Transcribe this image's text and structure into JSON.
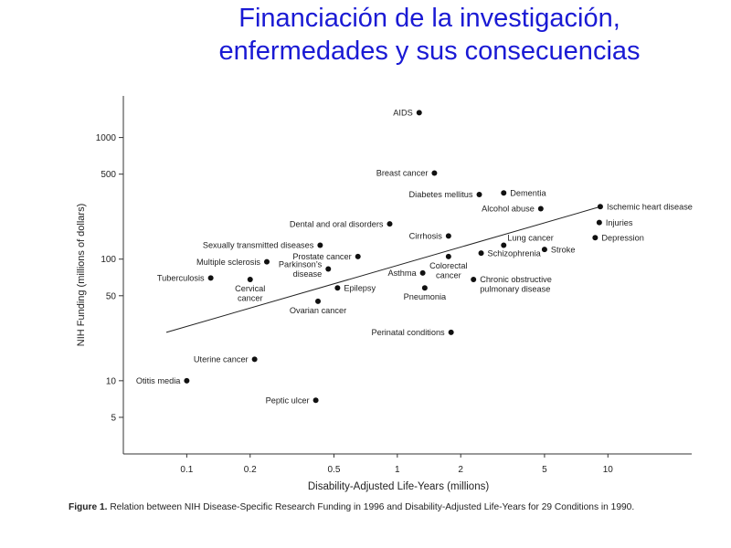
{
  "title": {
    "line1": "Financiación de la investigación,",
    "line2": "enfermedades y sus consecuencias"
  },
  "caption": {
    "label": "Figure 1.",
    "text": "Relation between NIH Disease-Specific Research Funding in 1996 and Disability-Adjusted Life-Years for 29 Conditions in 1990."
  },
  "chart_data": {
    "type": "scatter",
    "xlabel": "Disability-Adjusted Life-Years (millions)",
    "ylabel": "NIH Funding (millions of dollars)",
    "x_scale": "log",
    "y_scale": "log",
    "xlim": [
      0.05,
      25
    ],
    "ylim": [
      2.5,
      2200
    ],
    "x_ticks": [
      0.1,
      0.2,
      0.5,
      1,
      2,
      5,
      10
    ],
    "x_tick_labels": [
      "0.1",
      "0.2",
      "0.5",
      "1",
      "2",
      "5",
      "10"
    ],
    "y_ticks": [
      5,
      10,
      50,
      100,
      500,
      1000
    ],
    "y_tick_labels": [
      "5",
      "10",
      "50",
      "100",
      "500",
      "1000"
    ],
    "grid": false,
    "points": [
      {
        "label": [
          "AIDS"
        ],
        "x": 1.27,
        "y": 1600,
        "anchor": "left"
      },
      {
        "label": [
          "Breast cancer"
        ],
        "x": 1.5,
        "y": 510,
        "anchor": "left"
      },
      {
        "label": [
          "Diabetes mellitus"
        ],
        "x": 2.45,
        "y": 340,
        "anchor": "left"
      },
      {
        "label": [
          "Dementia"
        ],
        "x": 3.2,
        "y": 350,
        "anchor": "right"
      },
      {
        "label": [
          "Alcohol abuse"
        ],
        "x": 4.8,
        "y": 260,
        "anchor": "left"
      },
      {
        "label": [
          "Ischemic heart disease"
        ],
        "x": 9.2,
        "y": 270,
        "anchor": "right"
      },
      {
        "label": [
          "Injuries"
        ],
        "x": 9.1,
        "y": 200,
        "anchor": "right"
      },
      {
        "label": [
          "Depression"
        ],
        "x": 8.7,
        "y": 150,
        "anchor": "right"
      },
      {
        "label": [
          "Dental and oral disorders"
        ],
        "x": 0.92,
        "y": 195,
        "anchor": "left"
      },
      {
        "label": [
          "Cirrhosis"
        ],
        "x": 1.75,
        "y": 155,
        "anchor": "left"
      },
      {
        "label": [
          "Lung cancer"
        ],
        "x": 3.2,
        "y": 130,
        "anchor": "right-up"
      },
      {
        "label": [
          "Stroke"
        ],
        "x": 5.0,
        "y": 120,
        "anchor": "right"
      },
      {
        "label": [
          "Schizophrenia"
        ],
        "x": 2.5,
        "y": 112,
        "anchor": "right"
      },
      {
        "label": [
          "Sexually transmitted diseases"
        ],
        "x": 0.43,
        "y": 130,
        "anchor": "left"
      },
      {
        "label": [
          "Prostate cancer"
        ],
        "x": 0.65,
        "y": 105,
        "anchor": "left"
      },
      {
        "label": [
          "Multiple sclerosis"
        ],
        "x": 0.24,
        "y": 95,
        "anchor": "left"
      },
      {
        "label": [
          "Parkinson’s",
          "disease"
        ],
        "x": 0.47,
        "y": 83,
        "anchor": "left"
      },
      {
        "label": [
          "Colorectal",
          "cancer"
        ],
        "x": 1.75,
        "y": 105,
        "anchor": "below"
      },
      {
        "label": [
          "Asthma"
        ],
        "x": 1.32,
        "y": 77,
        "anchor": "left"
      },
      {
        "label": [
          "Chronic obstructive",
          "pulmonary disease"
        ],
        "x": 2.3,
        "y": 68,
        "anchor": "right"
      },
      {
        "label": [
          "Tuberculosis"
        ],
        "x": 0.13,
        "y": 70,
        "anchor": "left"
      },
      {
        "label": [
          "Cervical",
          "cancer"
        ],
        "x": 0.2,
        "y": 68,
        "anchor": "below"
      },
      {
        "label": [
          "Epilepsy"
        ],
        "x": 0.52,
        "y": 58,
        "anchor": "right"
      },
      {
        "label": [
          "Pneumonia"
        ],
        "x": 1.35,
        "y": 58,
        "anchor": "below"
      },
      {
        "label": [
          "Ovarian cancer"
        ],
        "x": 0.42,
        "y": 45,
        "anchor": "below"
      },
      {
        "label": [
          "Perinatal conditions"
        ],
        "x": 1.8,
        "y": 25,
        "anchor": "left"
      },
      {
        "label": [
          "Uterine cancer"
        ],
        "x": 0.21,
        "y": 15,
        "anchor": "left"
      },
      {
        "label": [
          "Otitis media"
        ],
        "x": 0.1,
        "y": 10,
        "anchor": "left"
      },
      {
        "label": [
          "Peptic ulcer"
        ],
        "x": 0.41,
        "y": 6.9,
        "anchor": "left"
      }
    ],
    "trend_line": {
      "x": [
        0.08,
        9.2
      ],
      "y": [
        25,
        270
      ]
    }
  }
}
